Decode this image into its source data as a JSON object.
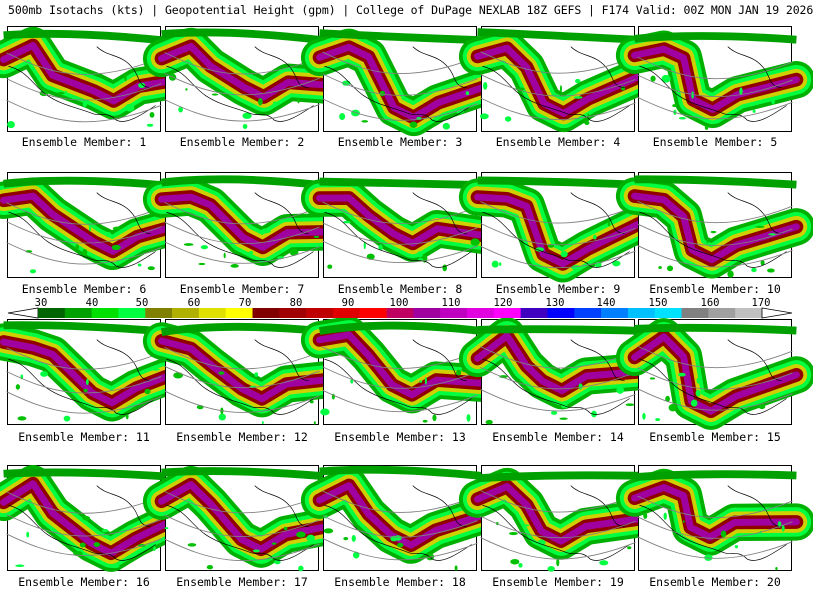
{
  "title": {
    "text": "500mb Isotachs (kts) | Geopotential Height (gpm) | College of DuPage NEXLAB   18Z GEFS | F174 Valid: 00Z MON JAN 19 2026"
  },
  "members": [
    "Ensemble Member: 1",
    "Ensemble Member: 2",
    "Ensemble Member: 3",
    "Ensemble Member: 4",
    "Ensemble Member: 5",
    "Ensemble Member: 6",
    "Ensemble Member: 7",
    "Ensemble Member: 8",
    "Ensemble Member: 9",
    "Ensemble Member: 10",
    "Ensemble Member: 11",
    "Ensemble Member: 12",
    "Ensemble Member: 13",
    "Ensemble Member: 14",
    "Ensemble Member: 15",
    "Ensemble Member: 16",
    "Ensemble Member: 17",
    "Ensemble Member: 18",
    "Ensemble Member: 19",
    "Ensemble Member: 20"
  ],
  "colorbar": {
    "labels": [
      "30",
      "40",
      "50",
      "60",
      "70",
      "80",
      "90",
      "100",
      "110",
      "120",
      "130",
      "140",
      "150",
      "160",
      "170"
    ],
    "colors": [
      "#006400",
      "#00a000",
      "#00e000",
      "#00ff40",
      "#808000",
      "#b0b000",
      "#e0e000",
      "#ffff00",
      "#800000",
      "#a00000",
      "#c00000",
      "#e00000",
      "#ff0000",
      "#c00060",
      "#a000a0",
      "#c000c0",
      "#e000e0",
      "#ff00ff",
      "#4000c0",
      "#0000ff",
      "#0040ff",
      "#0080ff",
      "#00c0ff",
      "#00e0ff",
      "#808080",
      "#a0a0a0",
      "#c0c0c0"
    ]
  }
}
